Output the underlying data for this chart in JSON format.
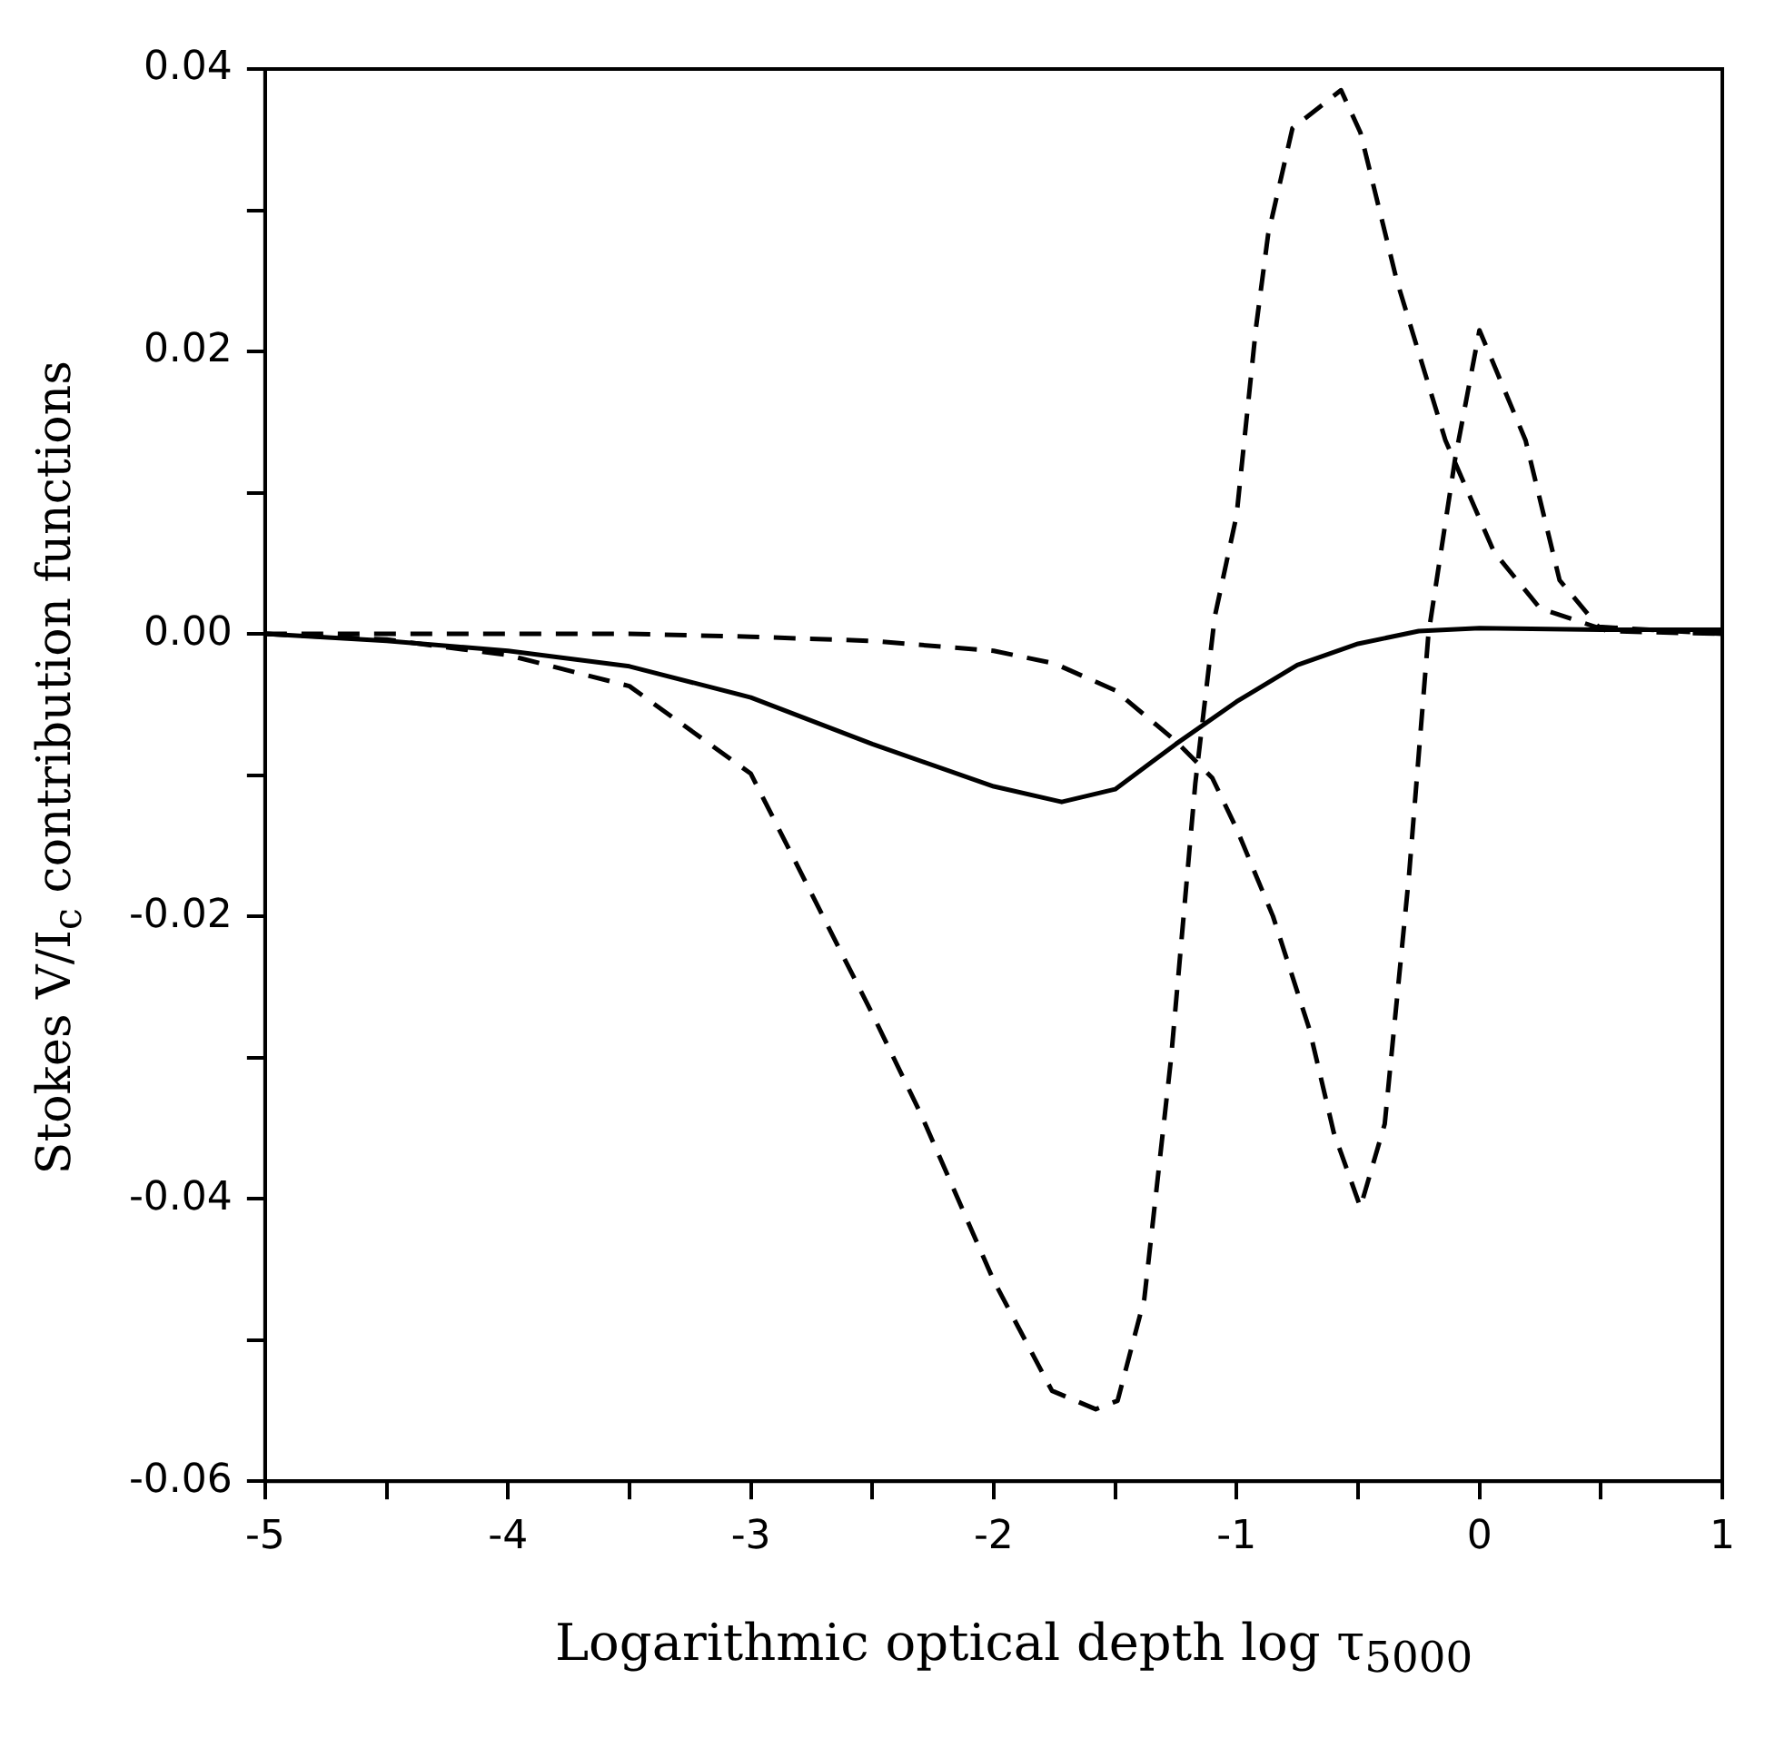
{
  "chart_data": {
    "type": "line",
    "xlabel": "Logarithmic optical depth log τ$_{5000}$",
    "ylabel": "Stokes V/I$_{c}$ contribution functions",
    "xlim": [
      -5,
      1
    ],
    "ylim": [
      -0.06,
      0.04
    ],
    "xticks": [
      -5,
      {
        "value": -4.5,
        "label": null
      },
      -4,
      {
        "value": -3.5,
        "label": null
      },
      -3,
      {
        "value": -2.5,
        "label": null
      },
      -2,
      {
        "value": -1.5,
        "label": null
      },
      -1,
      {
        "value": -0.5,
        "label": null
      },
      0,
      {
        "value": 0.5,
        "label": null
      },
      1
    ],
    "yticks": [
      -0.06,
      {
        "value": -0.05,
        "label": null
      },
      -0.04,
      {
        "value": -0.03,
        "label": null
      },
      -0.02,
      {
        "value": -0.01,
        "label": null
      },
      {
        "value": 0,
        "label": "0.00"
      },
      {
        "value": 0.01,
        "label": null
      },
      0.02,
      {
        "value": 0.03,
        "label": null
      },
      0.04
    ],
    "grid": false,
    "legend": false,
    "marker": "none",
    "series": [
      {
        "color": "#000000",
        "line_style": "solid",
        "x": [
          -5,
          -4.5,
          -4,
          -3.5,
          -3,
          -2.5,
          -2,
          -1.72,
          -1.5,
          -1.25,
          -1,
          -0.75,
          -0.5,
          -0.25,
          0,
          0.5,
          1
        ],
        "values": [
          0,
          -0.0005,
          -0.0012,
          -0.0023,
          -0.0045,
          -0.0078,
          -0.0108,
          -0.0119,
          -0.011,
          -0.0078,
          -0.0048,
          -0.0022,
          -0.0007,
          0.0002,
          0.0004,
          0.0003,
          0.0003
        ]
      },
      {
        "color": "#000000",
        "line_style": "dashed",
        "x": [
          -5,
          -3.5,
          -3,
          -2.5,
          -2,
          -1.75,
          -1.5,
          -1.25,
          -1.1,
          -1,
          -0.85,
          -0.7,
          -0.6,
          -0.49,
          -0.39,
          -0.29,
          -0.21,
          -0.1,
          0,
          0.19,
          0.33,
          0.49,
          1
        ],
        "values": [
          0,
          0,
          -0.0002,
          -0.0005,
          -0.0012,
          -0.0021,
          -0.004,
          -0.0076,
          -0.0102,
          -0.0138,
          -0.02,
          -0.028,
          -0.0353,
          -0.0406,
          -0.0347,
          -0.0171,
          0,
          0.0124,
          0.0215,
          0.0137,
          0.0038,
          0.0005,
          0
        ]
      },
      {
        "color": "#000000",
        "line_style": "dashed",
        "x": [
          -5,
          -4.5,
          -4,
          -3.5,
          -3,
          -2.5,
          -2.3,
          -2,
          -1.76,
          -1.58,
          -1.49,
          -1.38,
          -1.27,
          -1.17,
          -1.09,
          -1,
          -0.92,
          -0.87,
          -0.77,
          -0.57,
          -0.49,
          -0.34,
          -0.14,
          0.06,
          0.25,
          0.53,
          1
        ],
        "values": [
          0,
          -0.0004,
          -0.0015,
          -0.0037,
          -0.0099,
          -0.0269,
          -0.034,
          -0.0458,
          -0.0536,
          -0.0549,
          -0.0543,
          -0.0471,
          -0.0301,
          -0.0106,
          0.0012,
          0.0084,
          0.0217,
          0.0283,
          0.0358,
          0.0385,
          0.0355,
          0.025,
          0.0137,
          0.0058,
          0.0018,
          0.0002,
          0
        ]
      }
    ]
  }
}
